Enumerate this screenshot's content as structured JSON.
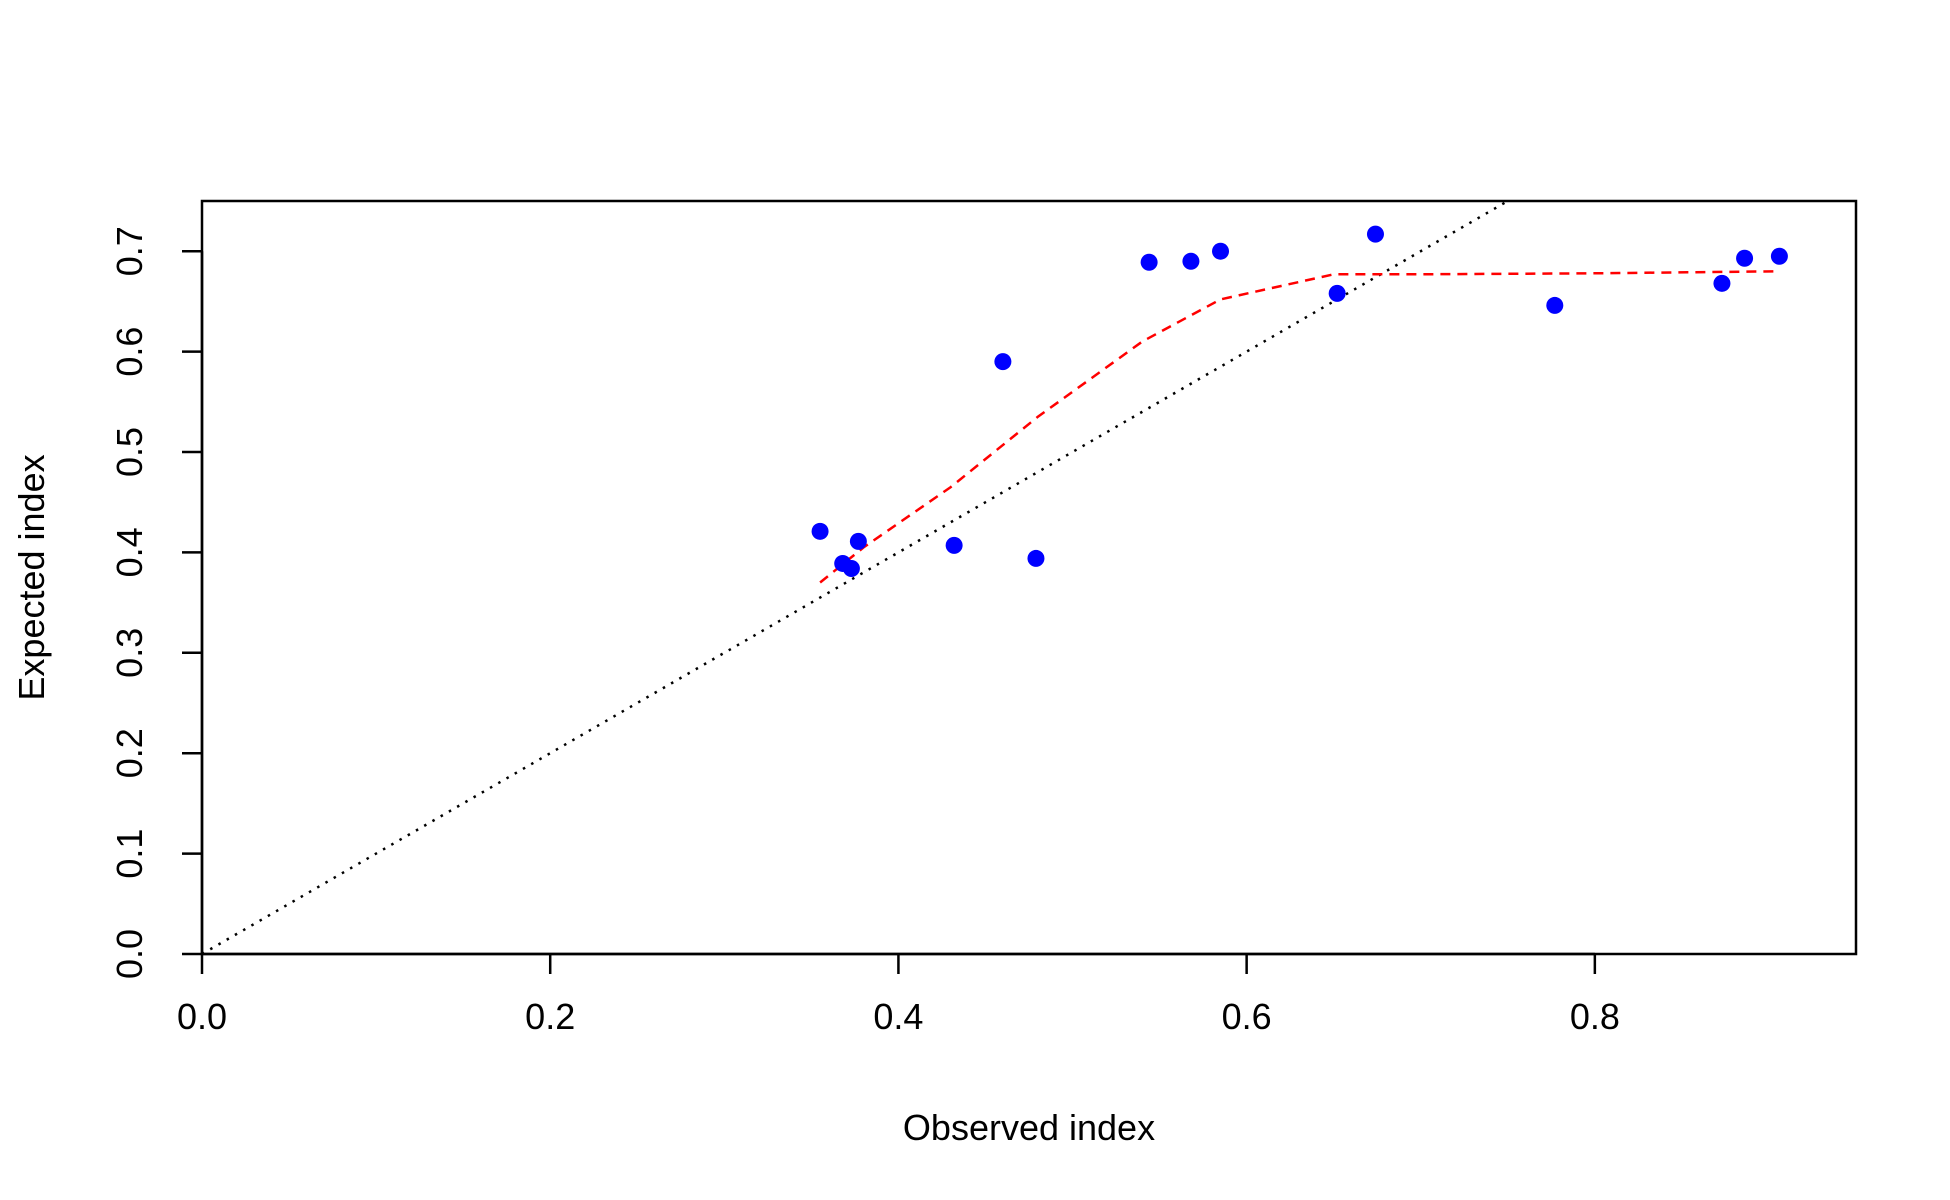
{
  "chart_data": {
    "type": "scatter",
    "title": "",
    "xlabel": "Observed index",
    "ylabel": "Expected index",
    "xlim": [
      0.0,
      0.95
    ],
    "ylim": [
      0.0,
      0.75
    ],
    "x_ticks": [
      0.0,
      0.2,
      0.4,
      0.6,
      0.8
    ],
    "x_tick_labels": [
      "0.0",
      "0.2",
      "0.4",
      "0.6",
      "0.8"
    ],
    "y_ticks": [
      0.0,
      0.1,
      0.2,
      0.3,
      0.4,
      0.5,
      0.6,
      0.7
    ],
    "y_tick_labels": [
      "0.0",
      "0.1",
      "0.2",
      "0.3",
      "0.4",
      "0.5",
      "0.6",
      "0.7"
    ],
    "grid": false,
    "colors": {
      "points": "#0000ff",
      "smooth": "#ff0000",
      "reference": "#000000",
      "frame": "#000000"
    },
    "points": {
      "x": [
        0.355,
        0.368,
        0.373,
        0.377,
        0.432,
        0.46,
        0.479,
        0.544,
        0.568,
        0.585,
        0.652,
        0.674,
        0.777,
        0.873,
        0.886,
        0.906
      ],
      "y": [
        0.421,
        0.389,
        0.384,
        0.411,
        0.407,
        0.59,
        0.394,
        0.689,
        0.69,
        0.7,
        0.658,
        0.717,
        0.646,
        0.668,
        0.693,
        0.695
      ]
    },
    "smooth_line": {
      "style": "dashed",
      "x": [
        0.355,
        0.38,
        0.43,
        0.48,
        0.54,
        0.585,
        0.65,
        0.7,
        0.8,
        0.906
      ],
      "y": [
        0.37,
        0.405,
        0.465,
        0.535,
        0.61,
        0.652,
        0.677,
        0.677,
        0.678,
        0.68
      ]
    },
    "reference_line": {
      "style": "dotted",
      "slope": 1,
      "intercept": 0
    }
  }
}
